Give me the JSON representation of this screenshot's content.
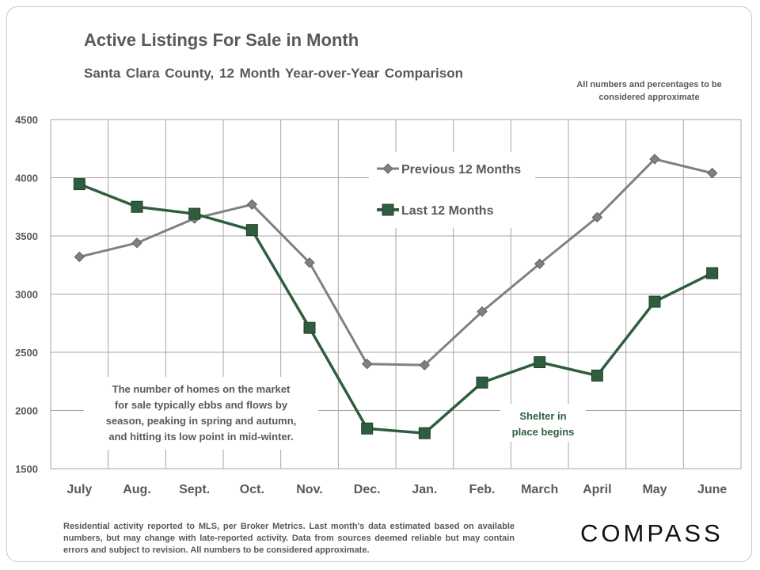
{
  "header": {
    "title": "Active Listings For Sale in Month",
    "subtitle": "Santa Clara County, 12 Month Year-over-Year  Comparison",
    "disclaimer": "All numbers and percentages to be considered approximate"
  },
  "annotations": {
    "note": "The number of homes on the market for sale typically ebbs and flows by season, peaking in spring and autumn, and hitting its low point in mid-winter.",
    "shelter": "Shelter in place begins"
  },
  "footer": {
    "source": "Residential activity reported to MLS, per Broker Metrics. Last month's data estimated based on available numbers, but may change with late-reported activity. Data from sources deemed reliable but may contain errors and subject to revision. All numbers to be considered approximate.",
    "logo": "COMPASS"
  },
  "colors": {
    "previous": "#808080",
    "last": "#2e5e3e",
    "grid": "#a6a6a6",
    "text": "#595959"
  },
  "chart_data": {
    "type": "line",
    "categories": [
      "July",
      "Aug.",
      "Sept.",
      "Oct.",
      "Nov.",
      "Dec.",
      "Jan.",
      "Feb.",
      "March",
      "April",
      "May",
      "June"
    ],
    "series": [
      {
        "name": "Previous 12 Months",
        "marker": "diamond",
        "values": [
          3320,
          3440,
          3650,
          3770,
          3270,
          2400,
          2390,
          2850,
          3260,
          3660,
          4160,
          4040
        ]
      },
      {
        "name": "Last 12 Months",
        "marker": "square",
        "values": [
          3945,
          3750,
          3690,
          3550,
          2710,
          1845,
          1805,
          2240,
          2415,
          2300,
          2935,
          3180
        ]
      }
    ],
    "ylim": [
      1500,
      4500
    ],
    "yticks": [
      1500,
      2000,
      2500,
      3000,
      3500,
      4000,
      4500
    ],
    "grid": true,
    "legend": "top-center",
    "title": "Active Listings For Sale in Month",
    "xlabel": "",
    "ylabel": ""
  }
}
